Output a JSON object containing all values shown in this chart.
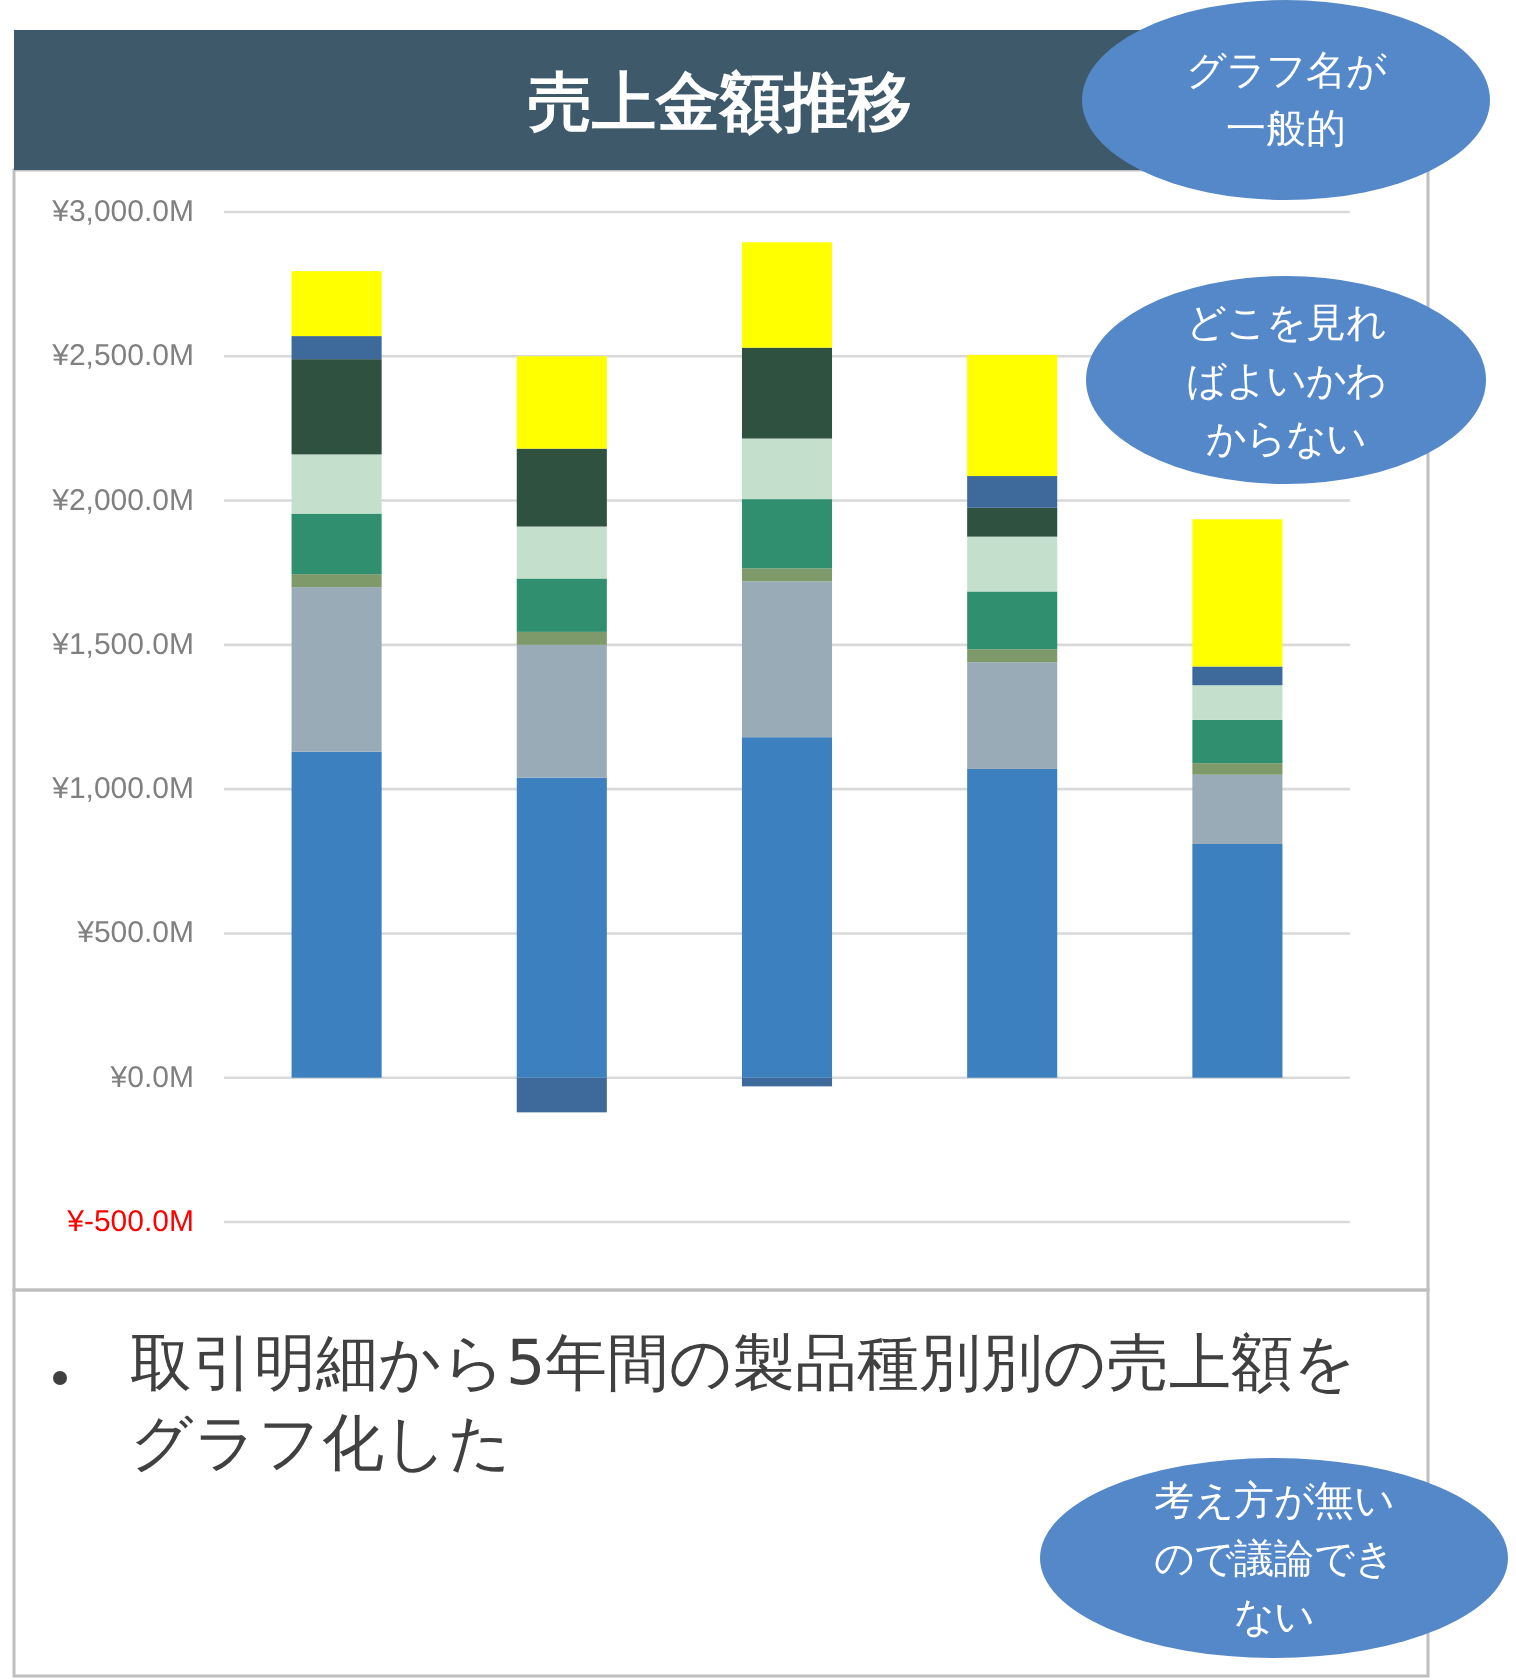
{
  "chart_data": {
    "type": "bar",
    "stacked": true,
    "title": "売上金額推移",
    "categories": [
      null,
      null,
      null,
      null,
      null
    ],
    "series": [
      {
        "color": "#3d80c0",
        "values": [
          1130,
          1040,
          1180,
          1070,
          810
        ]
      },
      {
        "color": "#9aabb8",
        "values": [
          570,
          460,
          540,
          370,
          240
        ]
      },
      {
        "color": "#7e9a6a",
        "values": [
          45,
          45,
          45,
          45,
          40
        ]
      },
      {
        "color": "#2f8f6e",
        "values": [
          210,
          185,
          240,
          200,
          150
        ]
      },
      {
        "color": "#c4e0cc",
        "values": [
          205,
          180,
          210,
          190,
          120
        ]
      },
      {
        "color": "#2f5240",
        "values": [
          330,
          270,
          315,
          100,
          null
        ]
      },
      {
        "color": "#3d6a9a",
        "values": [
          80,
          -120,
          -30,
          110,
          65
        ]
      },
      {
        "color": "#ffff00",
        "values": [
          225,
          320,
          365,
          420,
          510
        ]
      }
    ],
    "ylim": [
      -500,
      3000
    ],
    "yticks": [
      {
        "value": -500,
        "label": "¥-500.0M"
      },
      {
        "value": 0,
        "label": "¥0.0M"
      },
      {
        "value": 500,
        "label": "¥500.0M"
      },
      {
        "value": 1000,
        "label": "¥1,000.0M"
      },
      {
        "value": 1500,
        "label": "¥1,500.0M"
      },
      {
        "value": 2000,
        "label": "¥2,000.0M"
      },
      {
        "value": 2500,
        "label": "¥2,500.0M"
      },
      {
        "value": 3000,
        "label": "¥3,000.0M"
      }
    ],
    "grid": "y",
    "annotations": [
      "取引明細から5年間の製品種別別の売上額をグラフ化した",
      "グラフ名が一般的",
      "どこを見ればよいかわからない",
      "考え方が無いので議論できない"
    ]
  }
}
